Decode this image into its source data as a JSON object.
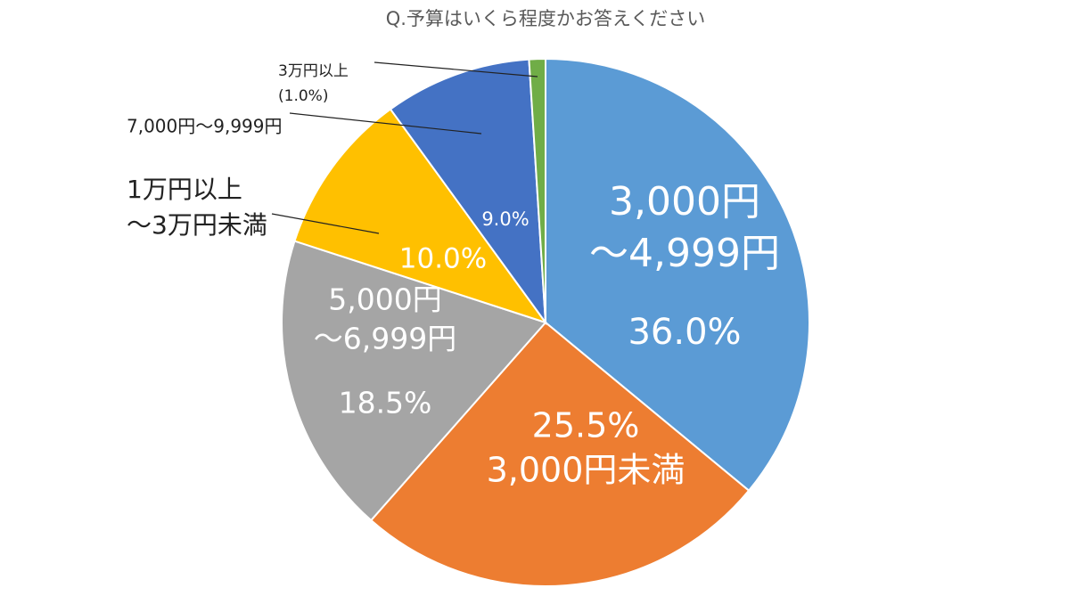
{
  "chart_data": {
    "type": "pie",
    "title": "Q.予算はいくら程度かお答えください",
    "start_angle_deg": 0,
    "direction": "clockwise",
    "slices": [
      {
        "label_lines": [
          "3,000円",
          "～4,999円"
        ],
        "value": 36.0,
        "pct_label": "36.0%",
        "color": "#5B9BD5",
        "label_position": "inside"
      },
      {
        "label_lines": [
          "3,000円未満"
        ],
        "value": 25.5,
        "pct_label": "25.5%",
        "color": "#ED7D31",
        "label_position": "inside",
        "pct_first": true
      },
      {
        "label_lines": [
          "5,000円",
          "～6,999円"
        ],
        "value": 18.5,
        "pct_label": "18.5%",
        "color": "#A5A5A5",
        "label_position": "inside"
      },
      {
        "label_lines": [
          "1万円以上",
          "～3万円未満"
        ],
        "value": 10.0,
        "pct_label": "10.0%",
        "color": "#FFC000",
        "label_position": "outside"
      },
      {
        "label_lines": [
          "7,000円～9,999円"
        ],
        "value": 9.0,
        "pct_label": "9.0%",
        "color": "#4472C4",
        "label_position": "outside"
      },
      {
        "label_lines": [
          "3万円以上",
          "(1.0%)"
        ],
        "value": 1.0,
        "pct_label": "",
        "color": "#70AD47",
        "label_position": "outside"
      }
    ],
    "legend": "none"
  }
}
